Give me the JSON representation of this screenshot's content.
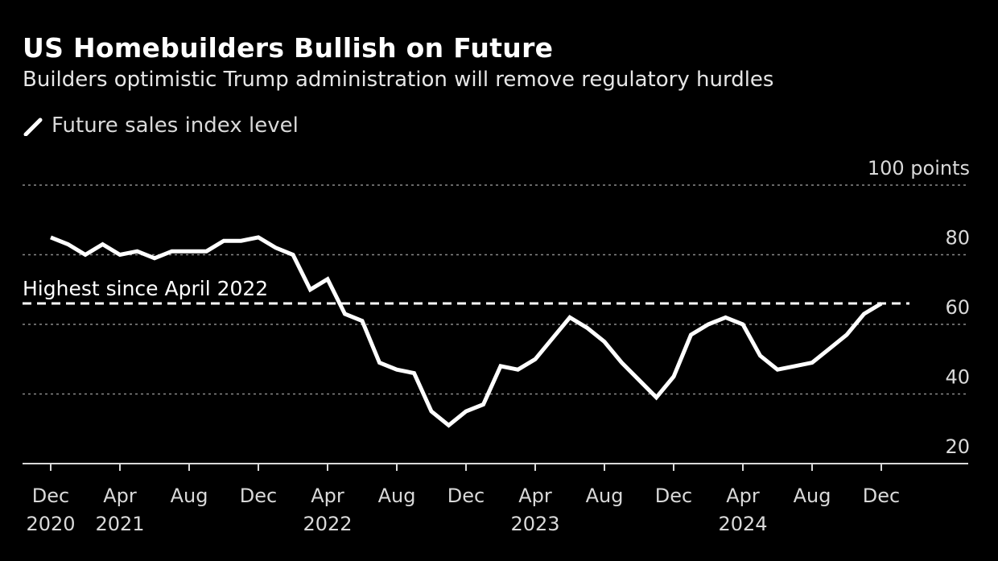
{
  "title": "US Homebuilders Bullish on Future",
  "subtitle": "Builders optimistic Trump administration will remove regulatory hurdles",
  "legend": [
    {
      "label": "Future sales index level",
      "color": "#ffffff",
      "icon": "line-swatch"
    }
  ],
  "chart_data": {
    "type": "line",
    "title": "US Homebuilders Bullish on Future",
    "subtitle": "Builders optimistic Trump administration will remove regulatory hurdles",
    "ylabel_unit": "points",
    "ylim": [
      20,
      100
    ],
    "yticks": [
      {
        "value": 100,
        "label": "100 points"
      },
      {
        "value": 80,
        "label": "80"
      },
      {
        "value": 60,
        "label": "60"
      },
      {
        "value": 40,
        "label": "40"
      },
      {
        "value": 20,
        "label": "20"
      }
    ],
    "xticks": [
      {
        "date": "2020-12",
        "label": "Dec",
        "year": "2020"
      },
      {
        "date": "2021-04",
        "label": "Apr",
        "year": "2021"
      },
      {
        "date": "2021-08",
        "label": "Aug",
        "year": ""
      },
      {
        "date": "2021-12",
        "label": "Dec",
        "year": ""
      },
      {
        "date": "2022-04",
        "label": "Apr",
        "year": "2022"
      },
      {
        "date": "2022-08",
        "label": "Aug",
        "year": ""
      },
      {
        "date": "2022-12",
        "label": "Dec",
        "year": ""
      },
      {
        "date": "2023-04",
        "label": "Apr",
        "year": "2023"
      },
      {
        "date": "2023-08",
        "label": "Aug",
        "year": ""
      },
      {
        "date": "2023-12",
        "label": "Dec",
        "year": ""
      },
      {
        "date": "2024-04",
        "label": "Apr",
        "year": "2024"
      },
      {
        "date": "2024-08",
        "label": "Aug",
        "year": ""
      },
      {
        "date": "2024-12",
        "label": "Dec",
        "year": ""
      }
    ],
    "grid": true,
    "legend_position": "top-left",
    "series": [
      {
        "name": "Future sales index level",
        "color": "#ffffff",
        "x": [
          "2020-12",
          "2021-01",
          "2021-02",
          "2021-03",
          "2021-04",
          "2021-05",
          "2021-06",
          "2021-07",
          "2021-08",
          "2021-09",
          "2021-10",
          "2021-11",
          "2021-12",
          "2022-01",
          "2022-02",
          "2022-03",
          "2022-04",
          "2022-05",
          "2022-06",
          "2022-07",
          "2022-08",
          "2022-09",
          "2022-10",
          "2022-11",
          "2022-12",
          "2023-01",
          "2023-02",
          "2023-03",
          "2023-04",
          "2023-05",
          "2023-06",
          "2023-07",
          "2023-08",
          "2023-09",
          "2023-10",
          "2023-11",
          "2023-12",
          "2024-01",
          "2024-02",
          "2024-03",
          "2024-04",
          "2024-05",
          "2024-06",
          "2024-07",
          "2024-08",
          "2024-09",
          "2024-10",
          "2024-11",
          "2024-12"
        ],
        "values": [
          85,
          83,
          80,
          83,
          80,
          81,
          79,
          81,
          81,
          81,
          84,
          84,
          85,
          82,
          80,
          70,
          73,
          63,
          61,
          49,
          47,
          46,
          35,
          31,
          35,
          37,
          48,
          47,
          50,
          56,
          62,
          59,
          55,
          49,
          44,
          39,
          45,
          57,
          60,
          62,
          60,
          51,
          47,
          48,
          49,
          53,
          57,
          63,
          66
        ]
      }
    ],
    "annotations": [
      {
        "type": "reference-line",
        "value": 66,
        "style": "dashed",
        "label": "Highest since April 2022"
      }
    ]
  }
}
